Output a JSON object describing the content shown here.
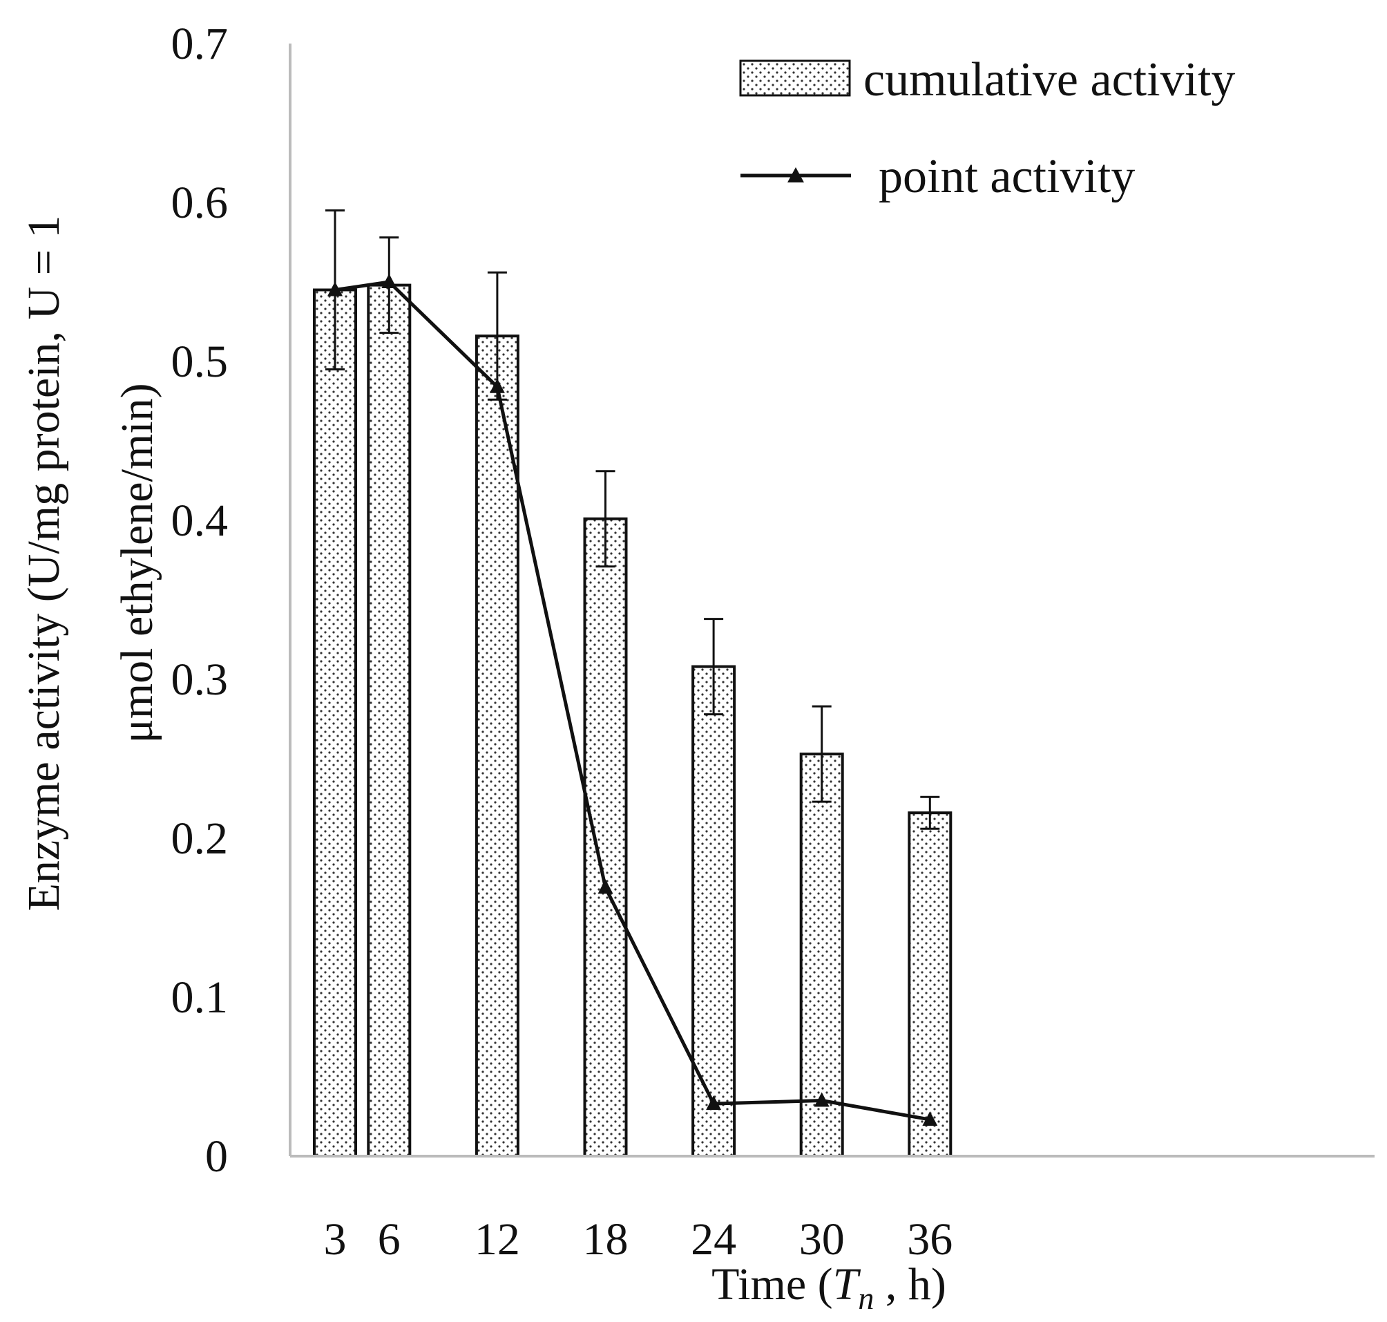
{
  "chart_data": {
    "type": "bar",
    "title": "",
    "categories": [
      "3",
      "6",
      "12",
      "18",
      "24",
      "30",
      "36"
    ],
    "x": [
      3,
      6,
      12,
      18,
      24,
      30,
      36
    ],
    "series": [
      {
        "name": "cumulative activity",
        "kind": "bar",
        "pattern": "dotted",
        "values": [
          0.545,
          0.548,
          0.516,
          0.401,
          0.308,
          0.253,
          0.216
        ],
        "error": [
          0.05,
          0.03,
          0.04,
          0.03,
          0.03,
          0.03,
          0.01
        ]
      },
      {
        "name": "point activity",
        "kind": "line",
        "marker": "triangle",
        "values": [
          0.545,
          0.55,
          0.484,
          0.169,
          0.033,
          0.035,
          0.023
        ]
      }
    ],
    "xlabel": {
      "prefix": "Time (",
      "var": "T",
      "sub": "n",
      "suffix": " , h)"
    },
    "ylabel": {
      "line1": "Enzyme activity (U/mg protein, U = 1",
      "line2": "μmol ethylene/min)"
    },
    "ylim": [
      0,
      0.7
    ],
    "yticks": [
      {
        "value": 0,
        "label": "0"
      },
      {
        "value": 0.1,
        "label": "0.1"
      },
      {
        "value": 0.2,
        "label": "0.2"
      },
      {
        "value": 0.3,
        "label": "0.3"
      },
      {
        "value": 0.4,
        "label": "0.4"
      },
      {
        "value": 0.5,
        "label": "0.5"
      },
      {
        "value": 0.6,
        "label": "0.6"
      },
      {
        "value": 0.7,
        "label": "0.7"
      }
    ],
    "grid": false,
    "legend": "top-right",
    "colors": {
      "bar_fill": "#ffffff",
      "bar_stroke": "#111111",
      "dots": "#333333",
      "line": "#111111",
      "axis": "#bbbbbb"
    }
  }
}
